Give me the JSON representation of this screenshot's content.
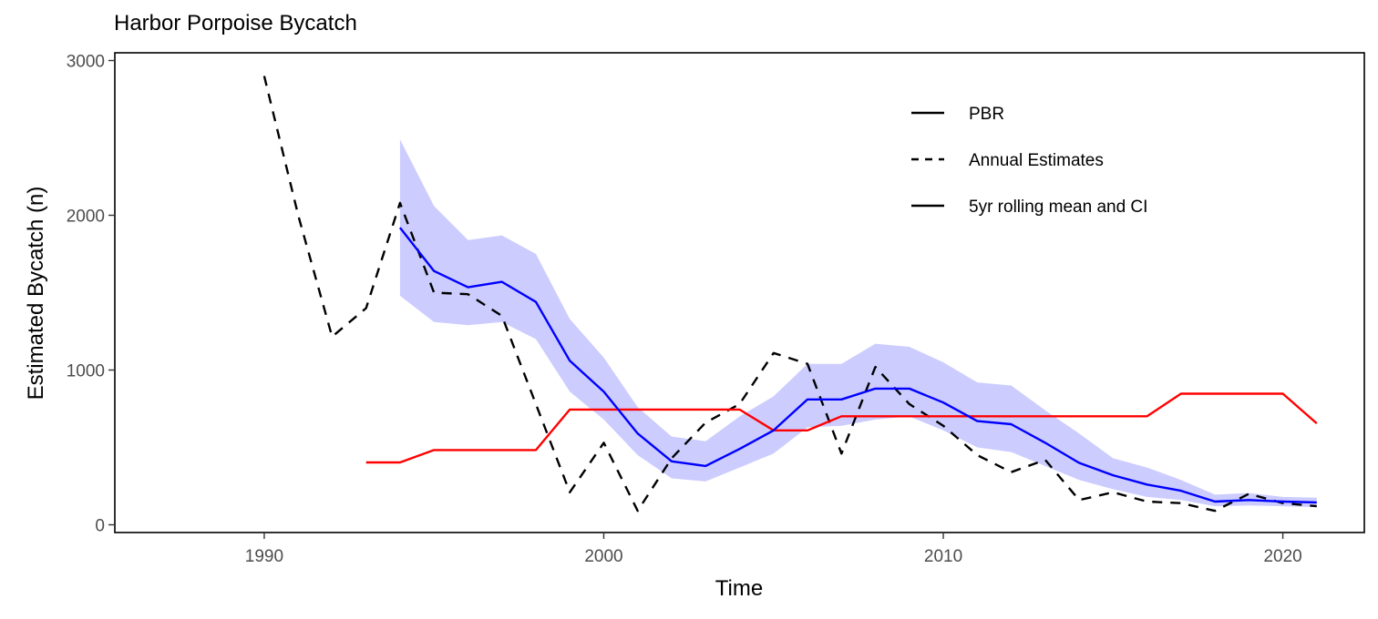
{
  "chart_data": {
    "type": "line",
    "title": "Harbor Porpoise Bycatch",
    "xlabel": "Time",
    "ylabel": "Estimated Bycatch (n)",
    "xlim": [
      1985.6,
      2022.4
    ],
    "ylim": [
      -50,
      3050
    ],
    "x_ticks": [
      1990,
      2000,
      2010,
      2020
    ],
    "y_ticks": [
      0,
      1000,
      2000,
      3000
    ],
    "grid": false,
    "legend_position": "top-right",
    "legend": [
      {
        "label": "PBR",
        "linetype": "solid"
      },
      {
        "label": "Annual Estimates",
        "linetype": "dashed"
      },
      {
        "label": "5yr rolling mean and CI",
        "linetype": "solid"
      }
    ],
    "series": [
      {
        "name": "Annual Estimates",
        "color": "#000000",
        "linetype": "dashed",
        "x": [
          1990,
          1991,
          1992,
          1993,
          1994,
          1995,
          1996,
          1997,
          1998,
          1999,
          2000,
          2001,
          2002,
          2003,
          2004,
          2005,
          2006,
          2007,
          2008,
          2009,
          2010,
          2011,
          2012,
          2013,
          2014,
          2015,
          2016,
          2017,
          2018,
          2019,
          2020,
          2021
        ],
        "y": [
          2900,
          2000,
          1215,
          1400,
          2080,
          1500,
          1490,
          1350,
          780,
          210,
          530,
          90,
          430,
          660,
          780,
          1110,
          1040,
          460,
          1020,
          780,
          640,
          450,
          340,
          420,
          160,
          210,
          150,
          140,
          90,
          200,
          140,
          120
        ]
      },
      {
        "name": "PBR",
        "color": "#ff0000",
        "linetype": "solid",
        "x": [
          1993,
          1994,
          1995,
          1996,
          1997,
          1998,
          1999,
          2000,
          2001,
          2002,
          2003,
          2004,
          2005,
          2006,
          2007,
          2008,
          2009,
          2010,
          2011,
          2012,
          2013,
          2014,
          2015,
          2016,
          2017,
          2018,
          2019,
          2020,
          2021
        ],
        "y": [
          403,
          403,
          483,
          483,
          483,
          483,
          745,
          745,
          745,
          745,
          745,
          745,
          610,
          610,
          701,
          701,
          701,
          701,
          701,
          701,
          701,
          701,
          701,
          701,
          847,
          847,
          847,
          847,
          655
        ]
      },
      {
        "name": "5yr rolling mean and CI",
        "color": "#0000ff",
        "linetype": "solid",
        "band_color": "#ccccff",
        "x": [
          1994,
          1995,
          1996,
          1997,
          1998,
          1999,
          2000,
          2001,
          2002,
          2003,
          2004,
          2005,
          2006,
          2007,
          2008,
          2009,
          2010,
          2011,
          2012,
          2013,
          2014,
          2015,
          2016,
          2017,
          2018,
          2019,
          2020,
          2021
        ],
        "y": [
          1920,
          1640,
          1535,
          1570,
          1440,
          1060,
          860,
          590,
          410,
          380,
          490,
          610,
          810,
          810,
          880,
          880,
          790,
          670,
          650,
          530,
          400,
          320,
          260,
          220,
          150,
          160,
          150,
          145
        ],
        "lower": [
          1480,
          1310,
          1290,
          1310,
          1200,
          860,
          680,
          450,
          300,
          280,
          370,
          460,
          630,
          640,
          680,
          700,
          610,
          500,
          470,
          380,
          290,
          230,
          180,
          160,
          120,
          125,
          120,
          115
        ],
        "upper": [
          2490,
          2060,
          1840,
          1870,
          1750,
          1330,
          1080,
          760,
          570,
          540,
          700,
          830,
          1040,
          1040,
          1170,
          1150,
          1050,
          920,
          900,
          740,
          590,
          430,
          370,
          290,
          195,
          205,
          180,
          175
        ]
      }
    ]
  }
}
